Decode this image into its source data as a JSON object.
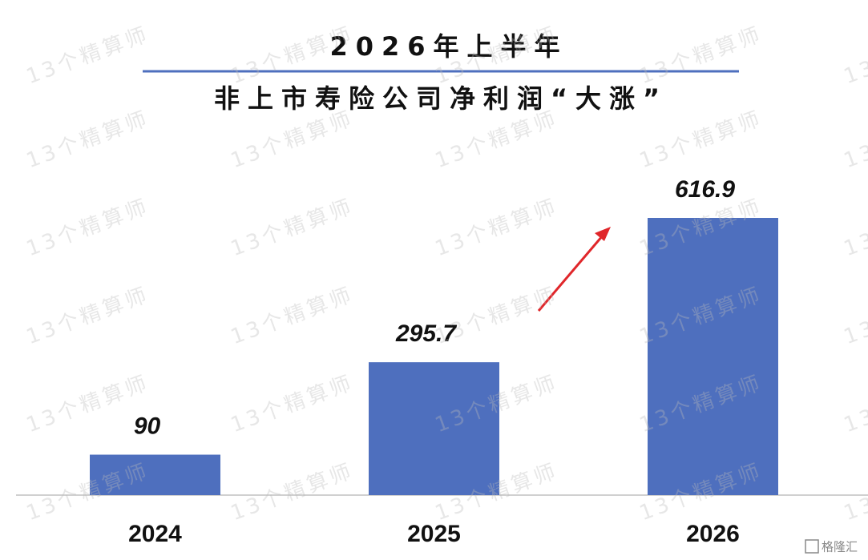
{
  "chart_data": {
    "type": "bar",
    "title": "2026年上半年",
    "subtitle": "非上市寿险公司净利润“大涨”",
    "categories": [
      "2024",
      "2025",
      "2026"
    ],
    "values": [
      90,
      295.7,
      616.9
    ],
    "color": "#4e6fbe"
  },
  "watermark": "13个精算师",
  "logo": "格隆汇"
}
